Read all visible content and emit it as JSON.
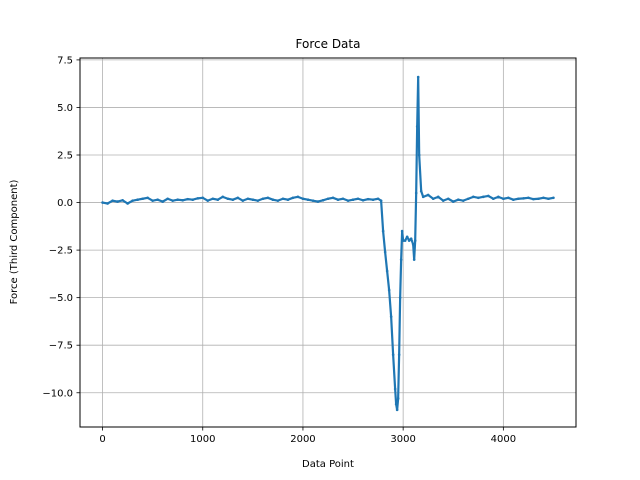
{
  "chart_data": {
    "type": "line",
    "title": "Force Data",
    "xlabel": "Data Point",
    "ylabel": "Force (Third Component)",
    "xlim": [
      -225,
      4725
    ],
    "ylim": [
      -11.8,
      7.6
    ],
    "xticks": [
      0,
      1000,
      2000,
      3000,
      4000
    ],
    "yticks": [
      -10.0,
      -7.5,
      -5.0,
      -2.5,
      0.0,
      2.5,
      5.0,
      7.5
    ],
    "xtick_labels": [
      "0",
      "1000",
      "2000",
      "3000",
      "4000"
    ],
    "ytick_labels": [
      "−10.0",
      "−7.5",
      "−5.0",
      "−2.5",
      "0.0",
      "2.5",
      "5.0",
      "7.5"
    ],
    "grid": true,
    "legend": "none",
    "series": [
      {
        "color": "#1f77b4",
        "marker": "dot",
        "x": [
          0,
          50,
          100,
          150,
          200,
          250,
          300,
          350,
          400,
          450,
          500,
          550,
          600,
          650,
          700,
          750,
          800,
          850,
          900,
          950,
          1000,
          1050,
          1100,
          1150,
          1200,
          1250,
          1300,
          1350,
          1400,
          1450,
          1500,
          1550,
          1600,
          1650,
          1700,
          1750,
          1800,
          1850,
          1900,
          1950,
          2000,
          2050,
          2100,
          2150,
          2200,
          2250,
          2300,
          2350,
          2400,
          2450,
          2500,
          2550,
          2600,
          2650,
          2700,
          2750,
          2780,
          2800,
          2820,
          2840,
          2860,
          2880,
          2900,
          2920,
          2930,
          2940,
          2950,
          2960,
          2970,
          2980,
          2990,
          3000,
          3020,
          3040,
          3060,
          3080,
          3100,
          3110,
          3120,
          3130,
          3140,
          3150,
          3160,
          3180,
          3200,
          3250,
          3300,
          3350,
          3400,
          3450,
          3500,
          3550,
          3600,
          3650,
          3700,
          3750,
          3800,
          3850,
          3900,
          3950,
          4000,
          4050,
          4100,
          4150,
          4200,
          4250,
          4300,
          4350,
          4400,
          4450,
          4500
        ],
        "y": [
          0.0,
          -0.05,
          0.1,
          0.05,
          0.12,
          -0.05,
          0.1,
          0.15,
          0.2,
          0.25,
          0.1,
          0.15,
          0.05,
          0.2,
          0.1,
          0.15,
          0.12,
          0.18,
          0.15,
          0.22,
          0.25,
          0.1,
          0.2,
          0.15,
          0.3,
          0.2,
          0.15,
          0.25,
          0.1,
          0.2,
          0.15,
          0.1,
          0.2,
          0.25,
          0.15,
          0.1,
          0.2,
          0.15,
          0.25,
          0.3,
          0.2,
          0.15,
          0.1,
          0.05,
          0.12,
          0.2,
          0.25,
          0.15,
          0.2,
          0.1,
          0.15,
          0.2,
          0.12,
          0.18,
          0.15,
          0.2,
          0.1,
          -1.5,
          -2.6,
          -3.6,
          -4.6,
          -6.0,
          -8.0,
          -9.8,
          -10.6,
          -10.9,
          -10.3,
          -8.0,
          -5.0,
          -3.0,
          -1.5,
          -2.0,
          -2.0,
          -1.8,
          -2.0,
          -1.9,
          -2.2,
          -3.0,
          -2.0,
          0.5,
          4.0,
          6.6,
          2.5,
          0.6,
          0.3,
          0.4,
          0.2,
          0.3,
          0.1,
          0.2,
          0.05,
          0.15,
          0.1,
          0.2,
          0.3,
          0.25,
          0.3,
          0.35,
          0.2,
          0.3,
          0.2,
          0.25,
          0.15,
          0.2,
          0.22,
          0.25,
          0.18,
          0.2,
          0.25,
          0.2,
          0.25
        ]
      }
    ]
  }
}
